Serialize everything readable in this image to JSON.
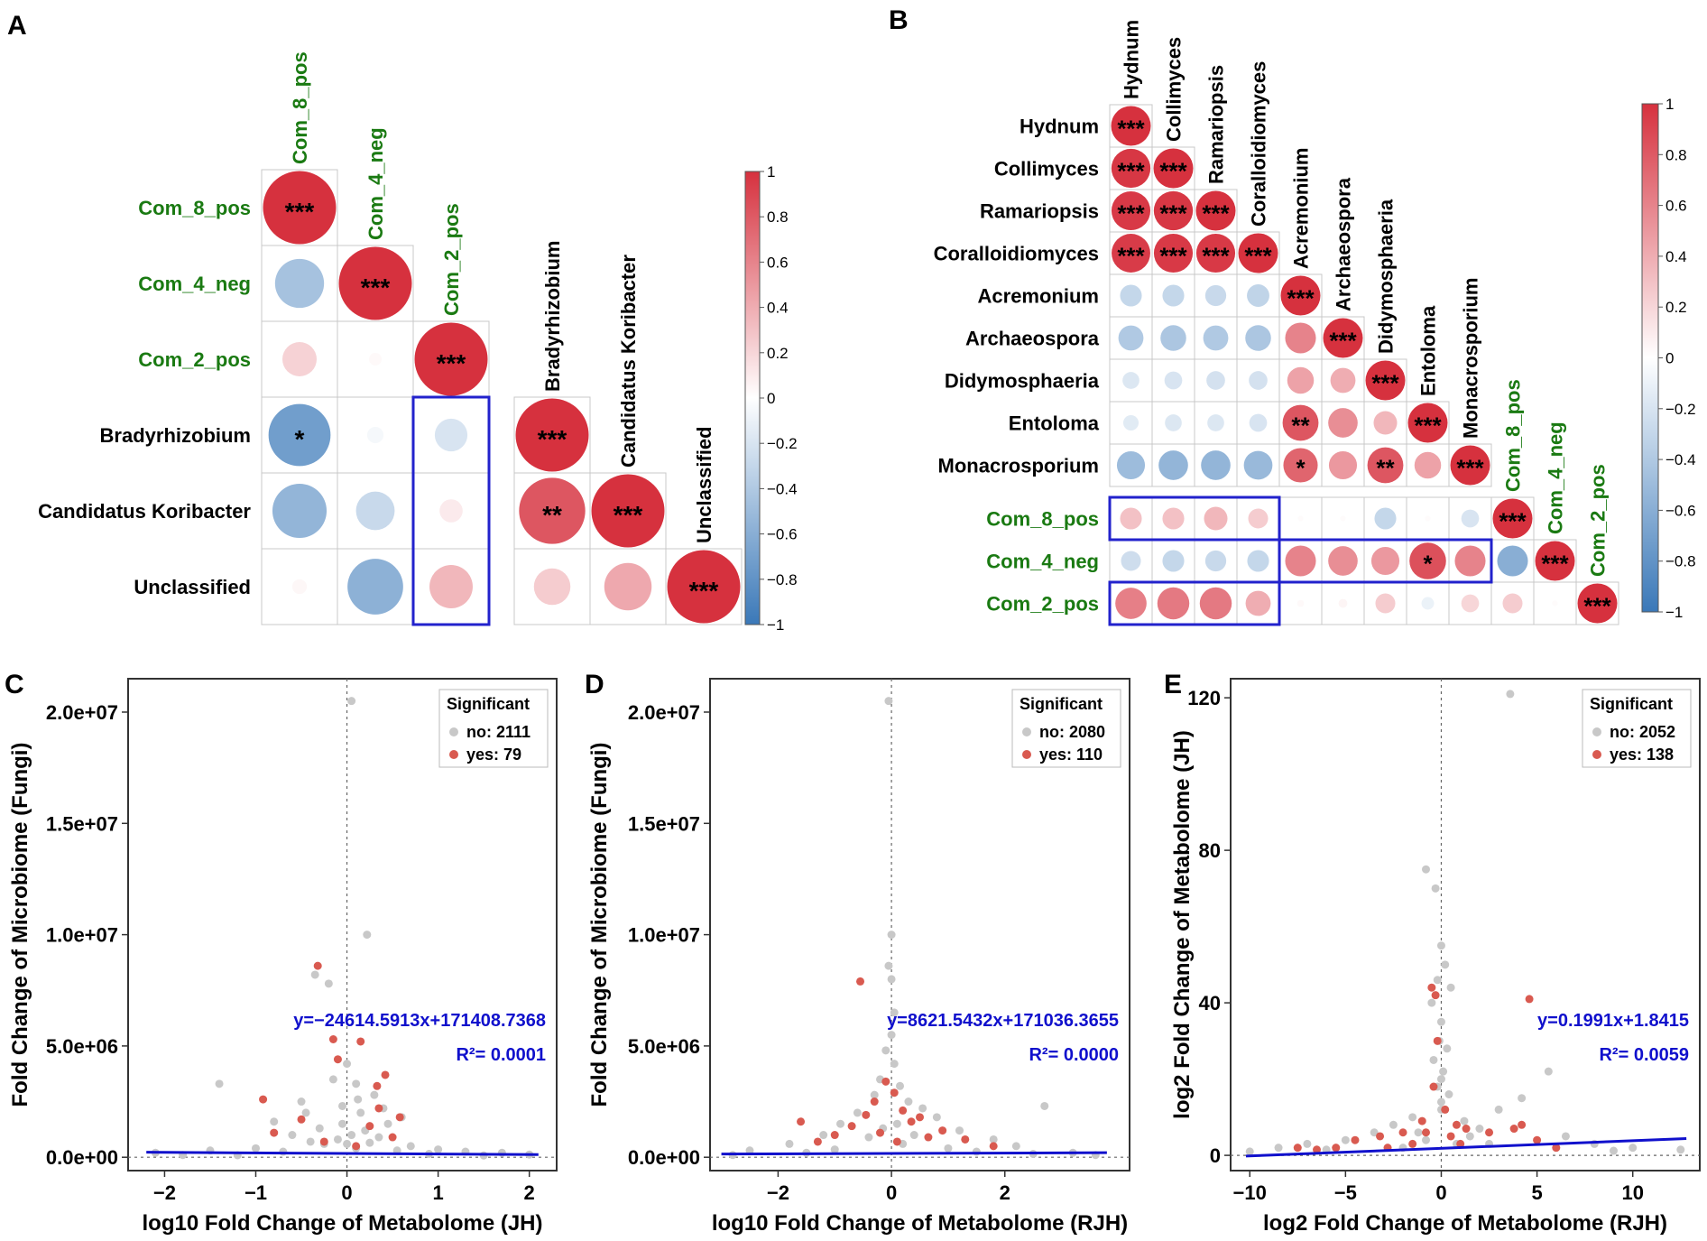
{
  "colors": {
    "pos": "#d6313e",
    "neg": "#3a78b8",
    "mid": "#ffffff",
    "green_label": "#1a7a12",
    "grid": "#c8c8c8",
    "box": "#2222cc",
    "grey_point": "#c8c8c8",
    "red_point": "#d95a50",
    "fit_line": "#1010cc"
  },
  "chart_data": [
    {
      "panel": "A",
      "type": "heatmap",
      "title": "",
      "labels": [
        "Com_8_pos",
        "Com_4_neg",
        "Com_2_pos",
        "Bradyrhizobium",
        "Candidatus Koribacter",
        "Unclassified"
      ],
      "label_group": [
        "module",
        "module",
        "module",
        "taxon",
        "taxon",
        "taxon"
      ],
      "correlations": [
        [
          1.0,
          null,
          null,
          null,
          null,
          null
        ],
        [
          -0.45,
          1.0,
          null,
          null,
          null,
          null
        ],
        [
          0.22,
          0.03,
          1.0,
          null,
          null,
          null
        ],
        [
          -0.72,
          -0.05,
          -0.2,
          1.0,
          null,
          null
        ],
        [
          -0.55,
          -0.28,
          0.1,
          0.82,
          1.0,
          null
        ],
        [
          0.04,
          -0.58,
          0.35,
          0.25,
          0.42,
          1.0
        ]
      ],
      "stars": [
        [
          "***",
          "",
          "",
          "",
          "",
          ""
        ],
        [
          "",
          "***",
          "",
          "",
          "",
          ""
        ],
        [
          "",
          "",
          "***",
          "",
          "",
          ""
        ],
        [
          "*",
          "",
          "",
          "***",
          "",
          ""
        ],
        [
          "",
          "",
          "",
          "**",
          "***",
          ""
        ],
        [
          "",
          "",
          "",
          "",
          "",
          "***"
        ]
      ],
      "highlight_boxes": [
        {
          "rows": [
            3,
            5
          ],
          "cols": [
            2,
            2
          ]
        }
      ],
      "colorbar_ticks": [
        "1",
        "0.8",
        "0.6",
        "0.4",
        "0.2",
        "0",
        "−0.2",
        "−0.4",
        "−0.6",
        "−0.8",
        "−1"
      ]
    },
    {
      "panel": "B",
      "type": "heatmap",
      "title": "",
      "labels": [
        "Hydnum",
        "Collimyces",
        "Ramariopsis",
        "Coralloidiomyces",
        "Acremonium",
        "Archaeospora",
        "Didymosphaeria",
        "Entoloma",
        "Monacrosporium",
        "Com_8_pos",
        "Com_4_neg",
        "Com_2_pos"
      ],
      "label_group": [
        "taxon",
        "taxon",
        "taxon",
        "taxon",
        "taxon",
        "taxon",
        "taxon",
        "taxon",
        "taxon",
        "module",
        "module",
        "module"
      ],
      "correlations": [
        [
          1.0
        ],
        [
          0.97,
          1.0
        ],
        [
          0.96,
          0.97,
          1.0
        ],
        [
          0.95,
          0.96,
          0.96,
          1.0
        ],
        [
          -0.3,
          -0.3,
          -0.28,
          -0.32,
          1.0
        ],
        [
          -0.4,
          -0.42,
          -0.4,
          -0.42,
          0.6,
          1.0
        ],
        [
          -0.18,
          -0.2,
          -0.22,
          -0.22,
          0.45,
          0.4,
          1.0
        ],
        [
          -0.15,
          -0.18,
          -0.18,
          -0.2,
          0.82,
          0.55,
          0.35,
          1.0
        ],
        [
          -0.5,
          -0.55,
          -0.55,
          -0.52,
          0.75,
          0.5,
          0.82,
          0.45,
          1.0
        ],
        [
          0.3,
          0.3,
          0.35,
          0.25,
          0.02,
          0.02,
          -0.3,
          0.02,
          -0.2,
          1.0
        ],
        [
          -0.25,
          -0.3,
          -0.28,
          -0.3,
          0.6,
          0.55,
          0.5,
          0.85,
          0.6,
          -0.6,
          1.0
        ],
        [
          0.62,
          0.65,
          0.65,
          0.4,
          0.03,
          0.05,
          0.25,
          -0.1,
          0.2,
          0.25,
          0.02,
          1.0
        ]
      ],
      "stars": [
        [
          "***"
        ],
        [
          "***",
          "***"
        ],
        [
          "***",
          "***",
          "***"
        ],
        [
          "***",
          "***",
          "***",
          "***"
        ],
        [
          "",
          "",
          "",
          "",
          "***"
        ],
        [
          "",
          "",
          "",
          "",
          "",
          "***"
        ],
        [
          "",
          "",
          "",
          "",
          "",
          "",
          "***"
        ],
        [
          "",
          "",
          "",
          "",
          "**",
          "",
          "",
          "***"
        ],
        [
          "",
          "",
          "",
          "",
          "*",
          "",
          "**",
          "",
          "***"
        ],
        [
          "",
          "",
          "",
          "",
          "",
          "",
          "",
          "",
          "",
          "***"
        ],
        [
          "",
          "",
          "",
          "",
          "",
          "",
          "",
          "*",
          "",
          "",
          "***"
        ],
        [
          "",
          "",
          "",
          "",
          "",
          "",
          "",
          "",
          "",
          "",
          "",
          "***"
        ]
      ],
      "highlight_boxes": [
        {
          "rows": [
            9,
            9
          ],
          "cols": [
            0,
            3
          ]
        },
        {
          "rows": [
            10,
            10
          ],
          "cols": [
            4,
            8
          ]
        },
        {
          "rows": [
            11,
            11
          ],
          "cols": [
            0,
            3
          ]
        }
      ],
      "colorbar_ticks": [
        "1",
        "0.8",
        "0.6",
        "0.4",
        "0.2",
        "0",
        "−0.2",
        "−0.4",
        "−0.6",
        "−0.8",
        "−1"
      ]
    },
    {
      "panel": "C",
      "type": "scatter",
      "title": "",
      "xlabel": "log10 Fold Change of Metabolome (JH)",
      "ylabel": "Fold Change of Microbiome (Fungi)",
      "xlim": [
        -2.4,
        2.3
      ],
      "ylim": [
        -600000,
        21500000
      ],
      "xticks": [
        -2,
        -1,
        0,
        1,
        2
      ],
      "xtick_labels": [
        "−2",
        "−1",
        "0",
        "1",
        "2"
      ],
      "yticks": [
        0,
        5000000,
        10000000,
        15000000,
        20000000
      ],
      "ytick_labels": [
        "0.0e+00",
        "5.0e+06",
        "1.0e+07",
        "1.5e+07",
        "2.0e+07"
      ],
      "legend": {
        "title": "Significant",
        "no": "no: 2111",
        "yes": "yes: 79"
      },
      "equation": "y=−24614.5913x+171408.7368",
      "r2": "R²= 0.0001",
      "fit": {
        "slope": -24614.5913,
        "intercept": 171408.7368,
        "x_range": [
          -2.2,
          2.1
        ]
      },
      "grey_points": [
        [
          0.05,
          20500000
        ],
        [
          0.22,
          10000000
        ],
        [
          -0.35,
          8200000
        ],
        [
          -0.2,
          7800000
        ],
        [
          0.0,
          4200000
        ],
        [
          -0.15,
          3500000
        ],
        [
          0.1,
          3300000
        ],
        [
          -1.4,
          3300000
        ],
        [
          0.3,
          2800000
        ],
        [
          -0.5,
          2500000
        ],
        [
          -0.05,
          2300000
        ],
        [
          0.15,
          2000000
        ],
        [
          0.6,
          1800000
        ],
        [
          -0.8,
          1600000
        ],
        [
          0.45,
          1500000
        ],
        [
          -0.3,
          1300000
        ],
        [
          0.2,
          1200000
        ],
        [
          -0.6,
          1000000
        ],
        [
          0.35,
          900000
        ],
        [
          -0.1,
          800000
        ],
        [
          0.05,
          1000000
        ],
        [
          -0.25,
          600000
        ],
        [
          0.7,
          500000
        ],
        [
          -1.0,
          400000
        ],
        [
          1.0,
          350000
        ],
        [
          -1.5,
          300000
        ],
        [
          1.3,
          250000
        ],
        [
          -2.1,
          200000
        ],
        [
          1.7,
          200000
        ],
        [
          0.0,
          600000
        ],
        [
          -0.4,
          700000
        ],
        [
          0.25,
          650000
        ],
        [
          0.55,
          300000
        ],
        [
          -0.7,
          250000
        ],
        [
          0.9,
          150000
        ],
        [
          -1.8,
          100000
        ],
        [
          2.0,
          120000
        ],
        [
          1.5,
          80000
        ],
        [
          -1.2,
          90000
        ],
        [
          0.1,
          400000
        ],
        [
          -0.05,
          1500000
        ],
        [
          0.12,
          2600000
        ],
        [
          -0.45,
          2000000
        ],
        [
          0.4,
          2200000
        ]
      ],
      "red_points": [
        [
          -0.32,
          8600000
        ],
        [
          -0.15,
          5300000
        ],
        [
          0.15,
          5200000
        ],
        [
          -0.1,
          4400000
        ],
        [
          0.42,
          3700000
        ],
        [
          0.33,
          3200000
        ],
        [
          -0.92,
          2600000
        ],
        [
          0.35,
          2200000
        ],
        [
          0.58,
          1800000
        ],
        [
          -0.5,
          1700000
        ],
        [
          0.25,
          1400000
        ],
        [
          -0.8,
          1100000
        ],
        [
          0.5,
          900000
        ],
        [
          -0.25,
          700000
        ],
        [
          0.1,
          500000
        ]
      ]
    },
    {
      "panel": "D",
      "type": "scatter",
      "title": "",
      "xlabel": "log10 Fold Change of Metabolome (RJH)",
      "ylabel": "Fold Change of Microbiome (Fungi)",
      "xlim": [
        -3.2,
        4.2
      ],
      "ylim": [
        -600000,
        21500000
      ],
      "xticks": [
        -2,
        0,
        2
      ],
      "xtick_labels": [
        "−2",
        "0",
        "2"
      ],
      "yticks": [
        0,
        5000000,
        10000000,
        15000000,
        20000000
      ],
      "ytick_labels": [
        "0.0e+00",
        "5.0e+06",
        "1.0e+07",
        "1.5e+07",
        "2.0e+07"
      ],
      "legend": {
        "title": "Significant",
        "no": "no: 2080",
        "yes": "yes: 110"
      },
      "equation": "y=8621.5432x+171036.3655",
      "r2": "R²= 0.0000",
      "fit": {
        "slope": 8621.5432,
        "intercept": 171036.3655,
        "x_range": [
          -3.0,
          3.8
        ]
      },
      "grey_points": [
        [
          -0.05,
          20500000
        ],
        [
          0.0,
          10000000
        ],
        [
          -0.05,
          8600000
        ],
        [
          0.0,
          8000000
        ],
        [
          0.05,
          6500000
        ],
        [
          0.0,
          5500000
        ],
        [
          -0.1,
          4800000
        ],
        [
          0.05,
          4200000
        ],
        [
          -0.2,
          3500000
        ],
        [
          0.15,
          3200000
        ],
        [
          -0.3,
          2800000
        ],
        [
          0.3,
          2500000
        ],
        [
          0.55,
          2200000
        ],
        [
          -0.6,
          2000000
        ],
        [
          0.8,
          1800000
        ],
        [
          -0.9,
          1500000
        ],
        [
          1.2,
          1200000
        ],
        [
          -1.2,
          1000000
        ],
        [
          2.7,
          2300000
        ],
        [
          1.8,
          800000
        ],
        [
          -1.8,
          600000
        ],
        [
          2.2,
          500000
        ],
        [
          -2.5,
          300000
        ],
        [
          3.2,
          200000
        ],
        [
          -0.4,
          900000
        ],
        [
          0.4,
          1000000
        ],
        [
          0.1,
          1500000
        ],
        [
          -0.15,
          1300000
        ],
        [
          1.0,
          400000
        ],
        [
          -1.0,
          350000
        ],
        [
          1.5,
          250000
        ],
        [
          -1.5,
          200000
        ],
        [
          2.5,
          150000
        ],
        [
          -2.8,
          100000
        ],
        [
          3.6,
          100000
        ],
        [
          0.2,
          600000
        ]
      ],
      "red_points": [
        [
          -0.55,
          7900000
        ],
        [
          -0.1,
          3400000
        ],
        [
          0.05,
          2900000
        ],
        [
          -0.3,
          2500000
        ],
        [
          0.2,
          2100000
        ],
        [
          0.5,
          1800000
        ],
        [
          -1.6,
          1600000
        ],
        [
          -0.7,
          1400000
        ],
        [
          0.9,
          1200000
        ],
        [
          -1.0,
          1000000
        ],
        [
          1.3,
          800000
        ],
        [
          0.35,
          1600000
        ],
        [
          -0.45,
          1900000
        ],
        [
          0.65,
          900000
        ],
        [
          -1.3,
          700000
        ],
        [
          1.8,
          500000
        ],
        [
          -0.2,
          1100000
        ],
        [
          0.1,
          700000
        ]
      ]
    },
    {
      "panel": "E",
      "type": "scatter",
      "title": "",
      "xlabel": "log2 Fold Change of Metabolome (RJH)",
      "ylabel": "log2 Fold Change of Metabolome (JH)",
      "xlim": [
        -11,
        13.5
      ],
      "ylim": [
        -4,
        125
      ],
      "xticks": [
        -10,
        -5,
        0,
        5,
        10
      ],
      "xtick_labels": [
        "−10",
        "−5",
        "0",
        "5",
        "10"
      ],
      "yticks": [
        0,
        40,
        80,
        120
      ],
      "ytick_labels": [
        "0",
        "40",
        "80",
        "120"
      ],
      "legend": {
        "title": "Significant",
        "no": "no: 2052",
        "yes": "yes: 138"
      },
      "equation": "y=0.1991x+1.8415",
      "r2": "R²= 0.0059",
      "fit": {
        "slope": 0.1991,
        "intercept": 1.8415,
        "x_range": [
          -10.2,
          12.8
        ]
      },
      "grey_points": [
        [
          3.6,
          121
        ],
        [
          -0.8,
          75
        ],
        [
          -0.3,
          70
        ],
        [
          0.0,
          55
        ],
        [
          0.2,
          50
        ],
        [
          -0.2,
          46
        ],
        [
          0.5,
          44
        ],
        [
          -0.5,
          40
        ],
        [
          0.0,
          35
        ],
        [
          -0.1,
          30
        ],
        [
          0.3,
          28
        ],
        [
          -0.4,
          25
        ],
        [
          0.1,
          22
        ],
        [
          0.0,
          20
        ],
        [
          -0.2,
          18
        ],
        [
          0.4,
          16
        ],
        [
          3.0,
          12
        ],
        [
          4.2,
          15
        ],
        [
          5.6,
          22
        ],
        [
          -1.5,
          10
        ],
        [
          1.2,
          9
        ],
        [
          -2.5,
          8
        ],
        [
          2.0,
          7
        ],
        [
          -3.5,
          6
        ],
        [
          6.5,
          5
        ],
        [
          -5.0,
          4
        ],
        [
          8.0,
          3
        ],
        [
          -7.0,
          3
        ],
        [
          10.0,
          2
        ],
        [
          -8.5,
          2
        ],
        [
          12.5,
          1.5
        ],
        [
          -10.0,
          1
        ],
        [
          -6.0,
          1.5
        ],
        [
          9.0,
          1.2
        ],
        [
          0.8,
          3
        ],
        [
          -0.8,
          4
        ],
        [
          1.5,
          5
        ],
        [
          -1.2,
          6
        ],
        [
          2.5,
          3
        ],
        [
          -2.0,
          2
        ],
        [
          0.0,
          12
        ],
        [
          0.0,
          14
        ]
      ],
      "red_points": [
        [
          -0.5,
          44
        ],
        [
          -0.3,
          42
        ],
        [
          4.6,
          41
        ],
        [
          -0.2,
          30
        ],
        [
          -0.4,
          18
        ],
        [
          0.2,
          12
        ],
        [
          -1.0,
          9
        ],
        [
          0.8,
          8
        ],
        [
          1.3,
          7
        ],
        [
          -2.0,
          6
        ],
        [
          2.5,
          6
        ],
        [
          -3.2,
          5
        ],
        [
          3.8,
          7
        ],
        [
          4.2,
          8
        ],
        [
          -4.5,
          4
        ],
        [
          5.0,
          4
        ],
        [
          -1.5,
          3
        ],
        [
          1.0,
          3
        ],
        [
          -5.5,
          2
        ],
        [
          -7.5,
          2
        ],
        [
          -6.5,
          1.5
        ],
        [
          6.0,
          2
        ],
        [
          -2.8,
          2
        ],
        [
          0.5,
          5
        ],
        [
          -0.8,
          6
        ]
      ]
    }
  ]
}
